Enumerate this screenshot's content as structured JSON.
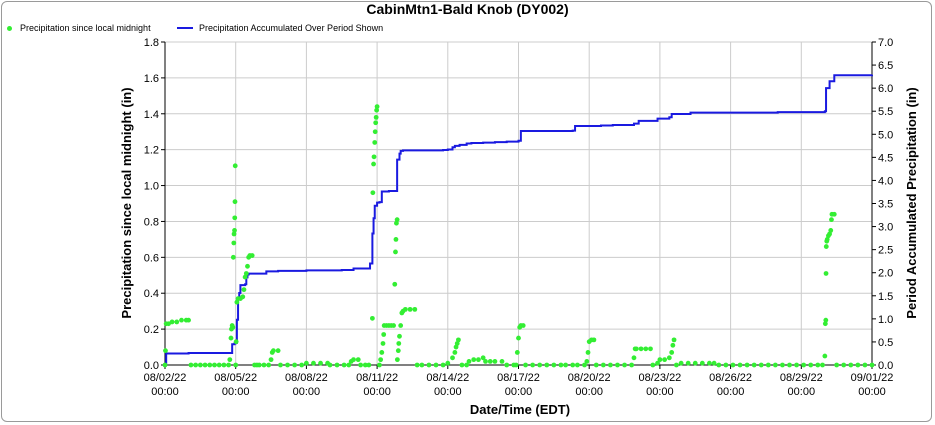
{
  "chart_data": {
    "type": "line",
    "title": "CabinMtn1-Bald Knob (DY002)",
    "xlabel": "Date/Time (EDT)",
    "ylabel": "Precipitation since local midnight (in)",
    "y2label": "Period Accumulated Precipitation (in)",
    "ylim": [
      0,
      1.8
    ],
    "y2lim": [
      0,
      7.0
    ],
    "yticks": [
      "0.0",
      "0.2",
      "0.4",
      "0.6",
      "0.8",
      "1.0",
      "1.2",
      "1.4",
      "1.6",
      "1.8"
    ],
    "y2ticks": [
      "0.0",
      "0.5",
      "1.0",
      "1.5",
      "2.0",
      "2.5",
      "3.0",
      "3.5",
      "4.0",
      "4.5",
      "5.0",
      "5.5",
      "6.0",
      "6.5",
      "7.0"
    ],
    "xlim_days": [
      0,
      30
    ],
    "xticks": [
      {
        "date": "08/02/22",
        "time": "00:00",
        "day": 0
      },
      {
        "date": "08/05/22",
        "time": "00:00",
        "day": 3
      },
      {
        "date": "08/08/22",
        "time": "00:00",
        "day": 6
      },
      {
        "date": "08/11/22",
        "time": "00:00",
        "day": 9
      },
      {
        "date": "08/14/22",
        "time": "00:00",
        "day": 12
      },
      {
        "date": "08/17/22",
        "time": "00:00",
        "day": 15
      },
      {
        "date": "08/20/22",
        "time": "00:00",
        "day": 18
      },
      {
        "date": "08/23/22",
        "time": "00:00",
        "day": 21
      },
      {
        "date": "08/26/22",
        "time": "00:00",
        "day": 24
      },
      {
        "date": "08/29/22",
        "time": "00:00",
        "day": 27
      },
      {
        "date": "09/01/22",
        "time": "00:00",
        "day": 30
      }
    ],
    "grid": true,
    "legend_position": "top-left",
    "series": [
      {
        "name": "Precipitation since local midnight",
        "color": "#33ee33",
        "style": "points",
        "axis": "left",
        "points": [
          [
            0.0,
            0.0
          ],
          [
            0.02,
            0.08
          ],
          [
            0.05,
            0.23
          ],
          [
            0.15,
            0.23
          ],
          [
            0.3,
            0.24
          ],
          [
            0.5,
            0.24
          ],
          [
            0.7,
            0.25
          ],
          [
            0.9,
            0.25
          ],
          [
            1.0,
            0.25
          ],
          [
            1.1,
            0.0
          ],
          [
            1.3,
            0.0
          ],
          [
            1.5,
            0.0
          ],
          [
            1.7,
            0.0
          ],
          [
            1.9,
            0.0
          ],
          [
            2.1,
            0.0
          ],
          [
            2.3,
            0.0
          ],
          [
            2.5,
            0.0
          ],
          [
            2.7,
            0.0
          ],
          [
            2.75,
            0.03
          ],
          [
            2.8,
            0.15
          ],
          [
            2.82,
            0.2
          ],
          [
            2.85,
            0.22
          ],
          [
            2.88,
            0.21
          ],
          [
            2.9,
            0.6
          ],
          [
            2.92,
            0.68
          ],
          [
            2.93,
            0.73
          ],
          [
            2.95,
            0.75
          ],
          [
            2.96,
            0.82
          ],
          [
            2.97,
            0.91
          ],
          [
            2.98,
            1.11
          ],
          [
            3.0,
            0.0
          ],
          [
            3.02,
            0.13
          ],
          [
            3.05,
            0.35
          ],
          [
            3.1,
            0.37
          ],
          [
            3.2,
            0.37
          ],
          [
            3.3,
            0.38
          ],
          [
            3.35,
            0.42
          ],
          [
            3.4,
            0.49
          ],
          [
            3.45,
            0.51
          ],
          [
            3.5,
            0.55
          ],
          [
            3.55,
            0.6
          ],
          [
            3.6,
            0.61
          ],
          [
            3.7,
            0.61
          ],
          [
            3.8,
            0.0
          ],
          [
            3.9,
            0.0
          ],
          [
            4.0,
            0.0
          ],
          [
            4.2,
            0.0
          ],
          [
            4.4,
            0.0
          ],
          [
            4.5,
            0.03
          ],
          [
            4.55,
            0.07
          ],
          [
            4.6,
            0.08
          ],
          [
            4.8,
            0.08
          ],
          [
            4.9,
            0.0
          ],
          [
            5.2,
            0.0
          ],
          [
            5.5,
            0.0
          ],
          [
            5.8,
            0.0
          ],
          [
            6.0,
            0.01
          ],
          [
            6.3,
            0.01
          ],
          [
            6.6,
            0.01
          ],
          [
            6.9,
            0.01
          ],
          [
            7.0,
            0.0
          ],
          [
            7.3,
            0.0
          ],
          [
            7.6,
            0.0
          ],
          [
            7.8,
            0.0
          ],
          [
            7.9,
            0.02
          ],
          [
            8.0,
            0.03
          ],
          [
            8.2,
            0.03
          ],
          [
            8.3,
            0.0
          ],
          [
            8.5,
            0.0
          ],
          [
            8.65,
            0.0
          ],
          [
            8.8,
            0.26
          ],
          [
            8.82,
            0.96
          ],
          [
            8.85,
            1.12
          ],
          [
            8.87,
            1.16
          ],
          [
            8.9,
            1.24
          ],
          [
            8.92,
            1.3
          ],
          [
            8.94,
            1.35
          ],
          [
            8.96,
            1.38
          ],
          [
            8.98,
            1.42
          ],
          [
            9.0,
            1.44
          ],
          [
            9.1,
            0.0
          ],
          [
            9.15,
            0.03
          ],
          [
            9.2,
            0.07
          ],
          [
            9.25,
            0.12
          ],
          [
            9.28,
            0.17
          ],
          [
            9.3,
            0.22
          ],
          [
            9.4,
            0.22
          ],
          [
            9.5,
            0.22
          ],
          [
            9.6,
            0.22
          ],
          [
            9.7,
            0.22
          ],
          [
            9.75,
            0.45
          ],
          [
            9.78,
            0.63
          ],
          [
            9.8,
            0.7
          ],
          [
            9.82,
            0.79
          ],
          [
            9.85,
            0.81
          ],
          [
            9.86,
            0.03
          ],
          [
            9.9,
            0.08
          ],
          [
            9.92,
            0.12
          ],
          [
            9.95,
            0.16
          ],
          [
            10.0,
            0.22
          ],
          [
            10.05,
            0.29
          ],
          [
            10.1,
            0.3
          ],
          [
            10.2,
            0.31
          ],
          [
            10.4,
            0.31
          ],
          [
            10.6,
            0.31
          ],
          [
            10.7,
            0.0
          ],
          [
            10.9,
            0.0
          ],
          [
            11.2,
            0.0
          ],
          [
            11.5,
            0.0
          ],
          [
            11.8,
            0.0
          ],
          [
            12.0,
            0.01
          ],
          [
            12.2,
            0.04
          ],
          [
            12.3,
            0.07
          ],
          [
            12.35,
            0.1
          ],
          [
            12.4,
            0.12
          ],
          [
            12.45,
            0.14
          ],
          [
            12.6,
            0.0
          ],
          [
            12.8,
            0.0
          ],
          [
            12.9,
            0.02
          ],
          [
            13.1,
            0.03
          ],
          [
            13.3,
            0.03
          ],
          [
            13.5,
            0.04
          ],
          [
            13.6,
            0.02
          ],
          [
            13.8,
            0.02
          ],
          [
            14.0,
            0.02
          ],
          [
            14.3,
            0.02
          ],
          [
            14.5,
            0.0
          ],
          [
            14.8,
            0.0
          ],
          [
            14.9,
            0.0
          ],
          [
            14.95,
            0.07
          ],
          [
            15.0,
            0.15
          ],
          [
            15.05,
            0.21
          ],
          [
            15.1,
            0.22
          ],
          [
            15.2,
            0.22
          ],
          [
            15.3,
            0.0
          ],
          [
            15.6,
            0.0
          ],
          [
            15.9,
            0.0
          ],
          [
            16.2,
            0.0
          ],
          [
            16.5,
            0.0
          ],
          [
            16.8,
            0.0
          ],
          [
            17.0,
            0.0
          ],
          [
            17.3,
            0.0
          ],
          [
            17.5,
            0.0
          ],
          [
            17.8,
            0.0
          ],
          [
            17.9,
            0.02
          ],
          [
            17.95,
            0.07
          ],
          [
            18.0,
            0.13
          ],
          [
            18.1,
            0.14
          ],
          [
            18.2,
            0.14
          ],
          [
            18.3,
            0.0
          ],
          [
            18.6,
            0.0
          ],
          [
            18.9,
            0.0
          ],
          [
            19.2,
            0.0
          ],
          [
            19.5,
            0.0
          ],
          [
            19.8,
            0.0
          ],
          [
            19.9,
            0.04
          ],
          [
            19.95,
            0.09
          ],
          [
            20.0,
            0.09
          ],
          [
            20.2,
            0.09
          ],
          [
            20.4,
            0.09
          ],
          [
            20.6,
            0.09
          ],
          [
            20.7,
            0.0
          ],
          [
            20.9,
            0.01
          ],
          [
            21.0,
            0.03
          ],
          [
            21.2,
            0.03
          ],
          [
            21.4,
            0.04
          ],
          [
            21.5,
            0.07
          ],
          [
            21.55,
            0.11
          ],
          [
            21.6,
            0.14
          ],
          [
            21.7,
            0.0
          ],
          [
            21.9,
            0.01
          ],
          [
            22.2,
            0.01
          ],
          [
            22.5,
            0.01
          ],
          [
            22.8,
            0.01
          ],
          [
            23.1,
            0.01
          ],
          [
            23.3,
            0.01
          ],
          [
            23.5,
            0.0
          ],
          [
            23.8,
            0.0
          ],
          [
            24.1,
            0.0
          ],
          [
            24.4,
            0.0
          ],
          [
            24.7,
            0.0
          ],
          [
            25.0,
            0.0
          ],
          [
            25.3,
            0.0
          ],
          [
            25.6,
            0.0
          ],
          [
            25.9,
            0.0
          ],
          [
            26.2,
            0.0
          ],
          [
            26.5,
            0.0
          ],
          [
            26.8,
            0.0
          ],
          [
            27.1,
            0.0
          ],
          [
            27.4,
            0.0
          ],
          [
            27.7,
            0.0
          ],
          [
            27.9,
            0.0
          ],
          [
            28.0,
            0.05
          ],
          [
            28.02,
            0.23
          ],
          [
            28.04,
            0.25
          ],
          [
            28.05,
            0.51
          ],
          [
            28.06,
            0.66
          ],
          [
            28.08,
            0.69
          ],
          [
            28.1,
            0.7
          ],
          [
            28.15,
            0.72
          ],
          [
            28.2,
            0.73
          ],
          [
            28.25,
            0.75
          ],
          [
            28.28,
            0.81
          ],
          [
            28.3,
            0.84
          ],
          [
            28.4,
            0.84
          ],
          [
            28.5,
            0.0
          ],
          [
            28.8,
            0.0
          ],
          [
            29.1,
            0.0
          ],
          [
            29.4,
            0.0
          ],
          [
            29.7,
            0.0
          ],
          [
            30.0,
            0.0
          ]
        ]
      },
      {
        "name": "Precipitation Accumulated Over Period Shown",
        "color": "#1a1ae0",
        "style": "step-line",
        "axis": "right",
        "points": [
          [
            0.0,
            0.0
          ],
          [
            0.05,
            0.25
          ],
          [
            1.0,
            0.26
          ],
          [
            1.2,
            0.26
          ],
          [
            2.5,
            0.26
          ],
          [
            2.8,
            0.26
          ],
          [
            2.85,
            0.45
          ],
          [
            2.95,
            0.47
          ],
          [
            3.0,
            0.48
          ],
          [
            3.05,
            0.98
          ],
          [
            3.1,
            1.42
          ],
          [
            3.15,
            1.56
          ],
          [
            3.2,
            1.73
          ],
          [
            3.3,
            1.73
          ],
          [
            3.4,
            1.75
          ],
          [
            3.45,
            1.9
          ],
          [
            3.5,
            1.96
          ],
          [
            3.55,
            1.98
          ],
          [
            3.6,
            1.98
          ],
          [
            3.7,
            1.98
          ],
          [
            3.8,
            1.98
          ],
          [
            4.2,
            1.98
          ],
          [
            4.3,
            2.03
          ],
          [
            4.8,
            2.04
          ],
          [
            5.0,
            2.04
          ],
          [
            6.0,
            2.05
          ],
          [
            7.0,
            2.05
          ],
          [
            7.5,
            2.06
          ],
          [
            8.0,
            2.09
          ],
          [
            8.6,
            2.09
          ],
          [
            8.7,
            2.2
          ],
          [
            8.8,
            2.85
          ],
          [
            8.85,
            3.18
          ],
          [
            8.9,
            3.45
          ],
          [
            9.0,
            3.52
          ],
          [
            9.1,
            3.53
          ],
          [
            9.2,
            3.76
          ],
          [
            9.5,
            3.77
          ],
          [
            9.8,
            3.77
          ],
          [
            9.85,
            4.45
          ],
          [
            9.95,
            4.58
          ],
          [
            10.0,
            4.64
          ],
          [
            10.1,
            4.65
          ],
          [
            11.5,
            4.65
          ],
          [
            11.8,
            4.66
          ],
          [
            12.0,
            4.67
          ],
          [
            12.2,
            4.72
          ],
          [
            12.3,
            4.75
          ],
          [
            12.5,
            4.77
          ],
          [
            12.8,
            4.8
          ],
          [
            13.0,
            4.81
          ],
          [
            13.5,
            4.82
          ],
          [
            14.0,
            4.83
          ],
          [
            14.5,
            4.84
          ],
          [
            15.0,
            4.86
          ],
          [
            15.1,
            5.07
          ],
          [
            15.3,
            5.07
          ],
          [
            16.5,
            5.07
          ],
          [
            17.3,
            5.08
          ],
          [
            17.4,
            5.18
          ],
          [
            18.3,
            5.18
          ],
          [
            18.5,
            5.19
          ],
          [
            19.0,
            5.2
          ],
          [
            19.9,
            5.23
          ],
          [
            20.1,
            5.29
          ],
          [
            20.6,
            5.29
          ],
          [
            20.9,
            5.34
          ],
          [
            21.4,
            5.37
          ],
          [
            21.5,
            5.44
          ],
          [
            22.3,
            5.47
          ],
          [
            24.0,
            5.47
          ],
          [
            26.0,
            5.48
          ],
          [
            27.9,
            5.48
          ],
          [
            28.0,
            5.5
          ],
          [
            28.05,
            6.0
          ],
          [
            28.2,
            6.15
          ],
          [
            28.4,
            6.28
          ],
          [
            30.0,
            6.29
          ]
        ]
      }
    ]
  }
}
